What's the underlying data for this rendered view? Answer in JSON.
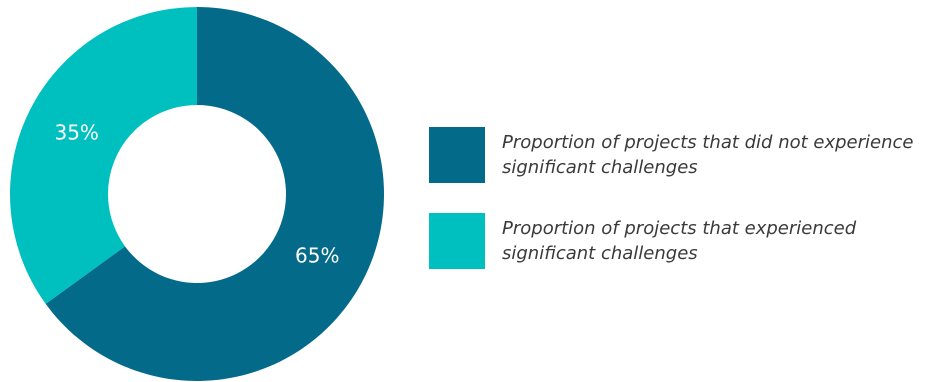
{
  "chart_data": {
    "type": "pie",
    "style": "donut",
    "legend_position": "right",
    "slices": [
      {
        "label": "Proportion of projects that did not experience significant challenges",
        "value": 65,
        "display": "65%",
        "color": "#046a8a"
      },
      {
        "label": "Proportion of projects that experienced significant challenges",
        "value": 35,
        "display": "35%",
        "color": "#00bfbf"
      }
    ]
  }
}
